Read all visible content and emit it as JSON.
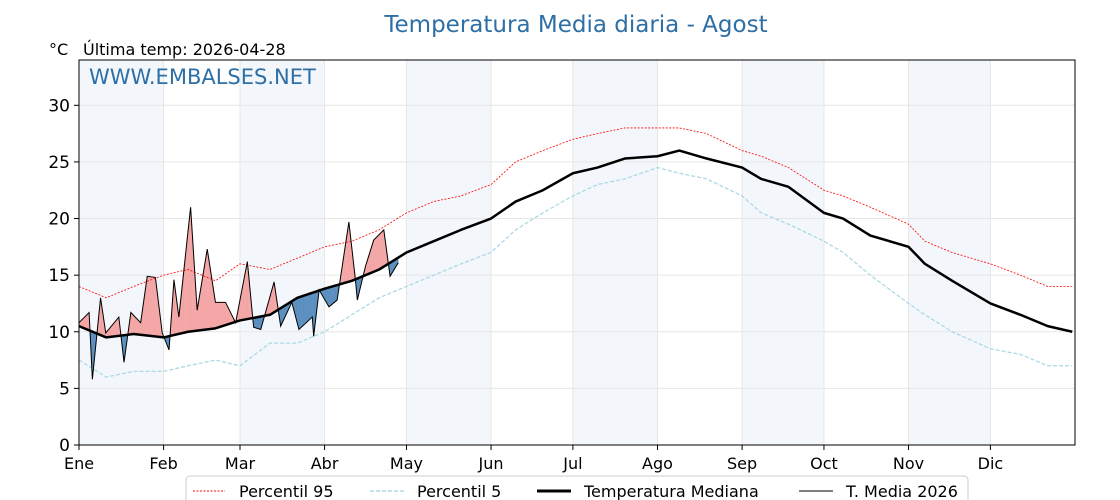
{
  "chart_data": {
    "type": "line",
    "title": "Temperatura Media diaria - Agost",
    "unit_label": "°C",
    "subtitle": "Última temp: 2026-04-28",
    "watermark": "WWW.EMBALSES.NET",
    "ylim": [
      0,
      34
    ],
    "xlim_days": [
      0,
      365
    ],
    "yticks": [
      0,
      5,
      10,
      15,
      20,
      25,
      30
    ],
    "months": [
      {
        "label": "Ene",
        "day": 0
      },
      {
        "label": "Feb",
        "day": 31
      },
      {
        "label": "Mar",
        "day": 59
      },
      {
        "label": "Abr",
        "day": 90
      },
      {
        "label": "May",
        "day": 120
      },
      {
        "label": "Jun",
        "day": 151
      },
      {
        "label": "Jul",
        "day": 181
      },
      {
        "label": "Ago",
        "day": 212
      },
      {
        "label": "Sep",
        "day": 243
      },
      {
        "label": "Oct",
        "day": 273
      },
      {
        "label": "Nov",
        "day": 304
      },
      {
        "label": "Dic",
        "day": 334
      }
    ],
    "grid": true,
    "legend_position": "bottom-center",
    "colors": {
      "p95": "#ff0000",
      "p5": "#add8e6",
      "median": "#000000",
      "current": "#000000",
      "above": "#f4a6a6",
      "below": "#5b8fbf",
      "band": "#f3f7fc",
      "title": "#2e6fa5"
    },
    "series": [
      {
        "key": "p95",
        "name": "Percentil 95",
        "x": [
          0,
          10,
          20,
          31,
          40,
          50,
          59,
          70,
          80,
          90,
          100,
          110,
          120,
          130,
          140,
          151,
          160,
          170,
          181,
          190,
          200,
          212,
          220,
          230,
          243,
          250,
          260,
          273,
          280,
          290,
          304,
          310,
          320,
          334,
          345,
          355,
          364
        ],
        "y": [
          14,
          13,
          14,
          15,
          15.5,
          14.5,
          16,
          15.5,
          16.5,
          17.5,
          18,
          19,
          20.5,
          21.5,
          22,
          23,
          25,
          26,
          27,
          27.5,
          28,
          28,
          28,
          27.5,
          26,
          25.5,
          24.5,
          22.5,
          22,
          21,
          19.5,
          18,
          17,
          16,
          15,
          14,
          14
        ]
      },
      {
        "key": "p5",
        "name": "Percentil 5",
        "x": [
          0,
          10,
          20,
          31,
          40,
          50,
          59,
          70,
          80,
          90,
          100,
          110,
          120,
          130,
          140,
          151,
          160,
          170,
          181,
          190,
          200,
          212,
          220,
          230,
          243,
          250,
          260,
          273,
          280,
          290,
          304,
          310,
          320,
          334,
          345,
          355,
          364
        ],
        "y": [
          7.5,
          6,
          6.5,
          6.5,
          7,
          7.5,
          7,
          9,
          9,
          10,
          11.5,
          13,
          14,
          15,
          16,
          17,
          19,
          20.5,
          22,
          23,
          23.5,
          24.5,
          24,
          23.5,
          22,
          20.5,
          19.5,
          18,
          17,
          15,
          12.5,
          11.5,
          10,
          8.5,
          8,
          7,
          7
        ]
      },
      {
        "key": "median",
        "name": "Temperatura Mediana",
        "x": [
          0,
          10,
          20,
          31,
          40,
          50,
          59,
          70,
          80,
          90,
          100,
          110,
          120,
          130,
          140,
          151,
          160,
          170,
          181,
          190,
          200,
          212,
          220,
          230,
          243,
          250,
          260,
          273,
          280,
          290,
          304,
          310,
          320,
          334,
          345,
          355,
          364
        ],
        "y": [
          10.5,
          9.5,
          9.8,
          9.5,
          10,
          10.3,
          11,
          11.5,
          13,
          13.8,
          14.5,
          15.5,
          17,
          18,
          19,
          20,
          21.5,
          22.5,
          24,
          24.5,
          25.3,
          25.5,
          26,
          25.3,
          24.5,
          23.5,
          22.8,
          20.5,
          20,
          18.5,
          17.5,
          16,
          14.5,
          12.5,
          11.5,
          10.5,
          10
        ]
      },
      {
        "key": "current",
        "name": "T. Media 2026",
        "x": [
          0,
          3.7,
          4.9,
          7.9,
          9.8,
          14.6,
          16.5,
          19,
          22.6,
          25,
          28,
          30.5,
          33,
          34.8,
          36.6,
          40.9,
          43.3,
          47,
          50,
          53.7,
          57.4,
          61.7,
          64,
          66.6,
          71.5,
          73.9,
          78,
          80.6,
          85.5,
          86,
          88,
          91.6,
          94.6,
          98.9,
          101.3,
          102,
          105,
          108,
          111.7,
          114,
          117
        ],
        "y": [
          10.8,
          11.7,
          5.8,
          13,
          9.9,
          11.3,
          7.3,
          11.7,
          10.8,
          14.9,
          14.8,
          9.9,
          8.4,
          14.6,
          11.3,
          21,
          11.9,
          17.3,
          12.6,
          12.6,
          10.8,
          16.2,
          10.4,
          10.2,
          14.4,
          10.5,
          12.6,
          10.2,
          11.3,
          9.6,
          13.7,
          12.2,
          12.8,
          19.7,
          14.6,
          12.8,
          15.8,
          18.1,
          19,
          14.9,
          16.1
        ]
      }
    ]
  }
}
